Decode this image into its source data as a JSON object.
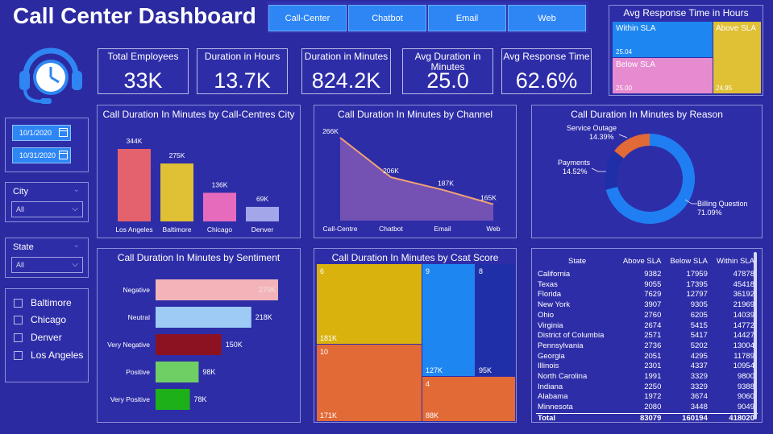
{
  "title": "Call Center Dashboard",
  "tabs": [
    "Call-Center",
    "Chatbot",
    "Email",
    "Web"
  ],
  "kpis": [
    {
      "label": "Total Employees",
      "value": "33K"
    },
    {
      "label": "Duration in Hours",
      "value": "13.7K"
    },
    {
      "label": "Duration in Minutes",
      "value": "824.2K"
    },
    {
      "label": "Avg Duration in Minutes",
      "value": "25.0"
    },
    {
      "label": "Avg Response Time",
      "value": "62.6%"
    }
  ],
  "response_sla": {
    "title": "Avg Response Time in Hours",
    "within": {
      "label": "Within SLA",
      "value": "25.04"
    },
    "below": {
      "label": "Below SLA",
      "value": "25.00"
    },
    "above": {
      "label": "Above SLA",
      "value": "24.95"
    }
  },
  "dates": {
    "start": "10/1/2020",
    "end": "10/31/2020"
  },
  "city_slicer": {
    "label": "City",
    "value": "All"
  },
  "state_slicer": {
    "label": "State",
    "value": "All"
  },
  "city_list": [
    "Baltimore",
    "Chicago",
    "Denver",
    "Los Angeles"
  ],
  "colors": {
    "background": "#2b2aa0",
    "accent_blue": "#2e86f5",
    "orange": "#e26a37",
    "yellow": "#e0c035",
    "pink": "#e66bbd"
  },
  "chart_data": [
    {
      "type": "bar",
      "title": "Call Duration In Minutes by Call-Centres City",
      "categories": [
        "Los Angeles",
        "Baltimore",
        "Chicago",
        "Denver"
      ],
      "values": [
        344,
        275,
        136,
        69
      ],
      "value_labels": [
        "344K",
        "275K",
        "136K",
        "69K"
      ],
      "colors": [
        "#e3626e",
        "#e0c035",
        "#e66bbd",
        "#a3a6e8"
      ]
    },
    {
      "type": "area",
      "title": "Call Duration In Minutes by Channel",
      "categories": [
        "Call-Centre",
        "Chatbot",
        "Email",
        "Web"
      ],
      "values": [
        266,
        206,
        187,
        165
      ],
      "value_labels": [
        "266K",
        "206K",
        "187K",
        "165K"
      ]
    },
    {
      "type": "pie",
      "title": "Call Duration In Minutes by Reason",
      "slices": [
        {
          "name": "Billing Question",
          "value": 71.09,
          "label": "71.09%",
          "color": "#1f7ff2"
        },
        {
          "name": "Payments",
          "value": 14.52,
          "label": "14.52%",
          "color": "#1f2fa8"
        },
        {
          "name": "Service Outage",
          "value": 14.39,
          "label": "14.39%",
          "color": "#e26a37"
        }
      ]
    },
    {
      "type": "bar",
      "title": "Call Duration In Minutes by Sentiment",
      "orientation": "horizontal",
      "categories": [
        "Negative",
        "Neutral",
        "Very Negative",
        "Positive",
        "Very Positive"
      ],
      "values": [
        279,
        218,
        150,
        98,
        78
      ],
      "value_labels": [
        "279K",
        "218K",
        "150K",
        "98K",
        "78K"
      ],
      "colors": [
        "#f2b4b9",
        "#9ecaf6",
        "#8c1221",
        "#6fcf64",
        "#1db019"
      ]
    },
    {
      "type": "heatmap",
      "title": "Call Duration In Minutes by Csat Score",
      "cells": [
        {
          "score": "6",
          "value": 181,
          "label": "181K",
          "color": "#d9b20e"
        },
        {
          "score": "10",
          "value": 171,
          "label": "171K",
          "color": "#e26a37"
        },
        {
          "score": "9",
          "value": 127,
          "label": "127K",
          "color": "#1e86f1"
        },
        {
          "score": "8",
          "value": 95,
          "label": "95K",
          "color": "#1f2fa8"
        },
        {
          "score": "4",
          "value": 88,
          "label": "88K",
          "color": "#e26a37"
        }
      ]
    },
    {
      "type": "table",
      "columns": [
        "State",
        "Above SLA",
        "Below SLA",
        "Within SLA"
      ],
      "rows": [
        [
          "California",
          "9382",
          "17959",
          "47878"
        ],
        [
          "Texas",
          "9055",
          "17395",
          "45418"
        ],
        [
          "Florida",
          "7629",
          "12797",
          "36192"
        ],
        [
          "New York",
          "3907",
          "9305",
          "21969"
        ],
        [
          "Ohio",
          "2760",
          "6205",
          "14039"
        ],
        [
          "Virginia",
          "2674",
          "5415",
          "14772"
        ],
        [
          "District of Columbia",
          "2571",
          "5417",
          "14427"
        ],
        [
          "Pennsylvania",
          "2736",
          "5202",
          "13004"
        ],
        [
          "Georgia",
          "2051",
          "4295",
          "11789"
        ],
        [
          "Illinois",
          "2301",
          "4337",
          "10954"
        ],
        [
          "North Carolina",
          "1991",
          "3329",
          "9800"
        ],
        [
          "Indiana",
          "2250",
          "3329",
          "9388"
        ],
        [
          "Alabama",
          "1972",
          "3674",
          "9060"
        ],
        [
          "Minnesota",
          "2080",
          "3448",
          "9049"
        ]
      ],
      "total": [
        "Total",
        "83079",
        "160194",
        "418020"
      ]
    }
  ]
}
